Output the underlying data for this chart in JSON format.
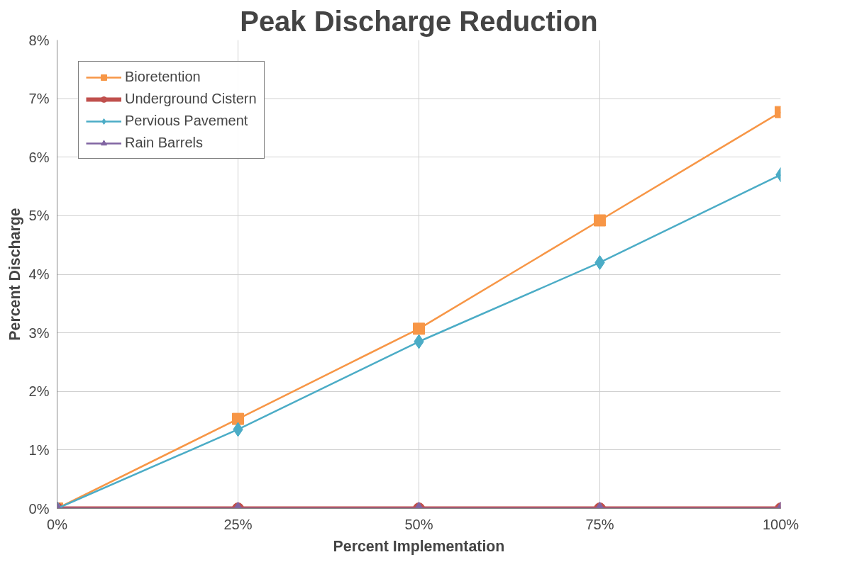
{
  "chart_data": {
    "type": "line",
    "title": "Peak Discharge Reduction",
    "xlabel": "Percent Implementation",
    "ylabel": "Percent Discharge",
    "x": [
      0,
      25,
      50,
      75,
      100
    ],
    "series": [
      {
        "name": "Bioretention",
        "color": "#f79646",
        "marker": "square",
        "values": [
          0,
          1.53,
          3.07,
          4.92,
          6.77
        ]
      },
      {
        "name": "Underground Cistern",
        "color": "#c0504d",
        "marker": "circle",
        "values": [
          0,
          0,
          0,
          0,
          0
        ]
      },
      {
        "name": "Pervious Pavement",
        "color": "#4bacc6",
        "marker": "diamond",
        "values": [
          0,
          1.35,
          2.85,
          4.2,
          5.7
        ]
      },
      {
        "name": "Rain Barrels",
        "color": "#8064a2",
        "marker": "triangle",
        "values": [
          0,
          0,
          0,
          0,
          0
        ]
      }
    ],
    "xlim": [
      0,
      100
    ],
    "xticks": [
      {
        "value": 0,
        "label": "0%"
      },
      {
        "value": 25,
        "label": "25%"
      },
      {
        "value": 50,
        "label": "50%"
      },
      {
        "value": 75,
        "label": "75%"
      },
      {
        "value": 100,
        "label": "100%"
      }
    ],
    "ylim": [
      0,
      8
    ],
    "yticks": [
      {
        "value": 0,
        "label": "0%"
      },
      {
        "value": 1,
        "label": "1%"
      },
      {
        "value": 2,
        "label": "2%"
      },
      {
        "value": 3,
        "label": "3%"
      },
      {
        "value": 4,
        "label": "4%"
      },
      {
        "value": 5,
        "label": "5%"
      },
      {
        "value": 6,
        "label": "6%"
      },
      {
        "value": 7,
        "label": "7%"
      },
      {
        "value": 8,
        "label": "8%"
      }
    ],
    "grid": true,
    "legend": "top left",
    "line_style": "solid"
  }
}
